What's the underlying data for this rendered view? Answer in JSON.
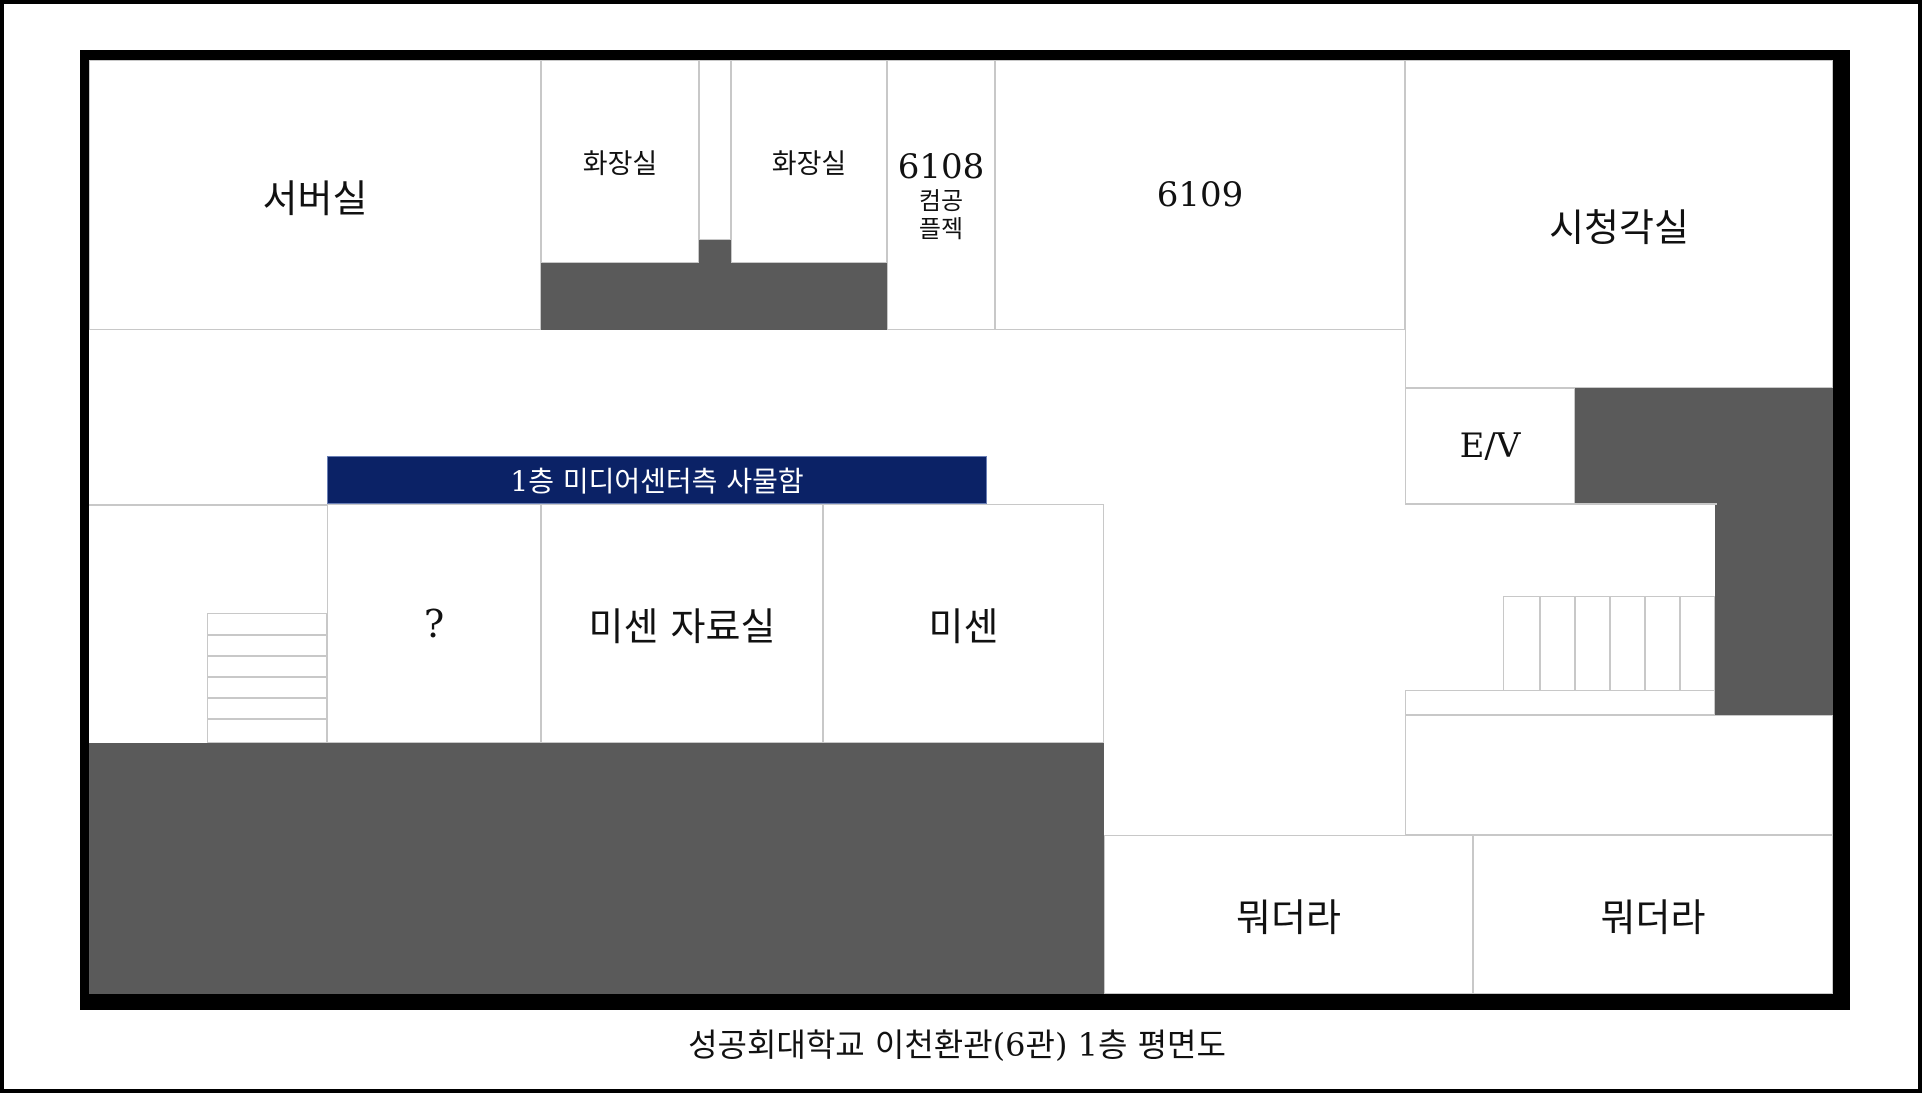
{
  "rooms": {
    "server": "서버실",
    "restroom_left": "화장실",
    "restroom_right": "화장실",
    "room_6108_number": "6108",
    "room_6108_line1": "컴공",
    "room_6108_line2": "플젝",
    "room_6109": "6109",
    "av_room": "시청각실",
    "elevator": "E/V",
    "unknown": "?",
    "misen_archive": "미센 자료실",
    "misen": "미센",
    "bottom_left_room": "뭐더라",
    "bottom_right_room": "뭐더라"
  },
  "locker": {
    "label": "1층 미디어센터측 사물함"
  },
  "caption": "성공회대학교 이천환관(6관) 1층 평면도",
  "colors": {
    "blocked_area": "#5a5a5a",
    "locker_banner": "#0b2266",
    "walls": "#000000",
    "room_lines": "#c8c8c8"
  }
}
